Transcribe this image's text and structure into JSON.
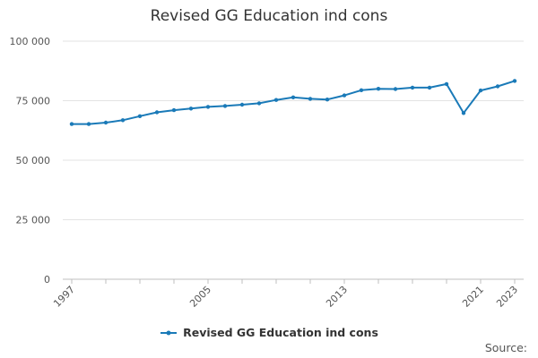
{
  "chart_data": {
    "type": "line",
    "title": "Revised GG Education ind cons",
    "xlabel": "",
    "ylabel": "",
    "x": [
      1997,
      1998,
      1999,
      2000,
      2001,
      2002,
      2003,
      2004,
      2005,
      2006,
      2007,
      2008,
      2009,
      2010,
      2011,
      2012,
      2013,
      2014,
      2015,
      2016,
      2017,
      2018,
      2019,
      2020,
      2021,
      2022,
      2023
    ],
    "x_tick_labels": [
      "1997",
      "2005",
      "2013",
      "2021",
      "2023"
    ],
    "x_ticks": [
      1997,
      2005,
      2013,
      2021,
      2023
    ],
    "xlim": [
      1997,
      2023
    ],
    "y_tick_labels": [
      "0",
      "25 000",
      "50 000",
      "75 000",
      "100 000"
    ],
    "y_ticks": [
      0,
      25000,
      50000,
      75000,
      100000
    ],
    "ylim": [
      0,
      100000
    ],
    "grid": true,
    "legend_position": "bottom",
    "series": [
      {
        "name": "Revised GG Education ind cons",
        "color": "#1a7ab8",
        "values": [
          65200,
          65200,
          65800,
          66800,
          68500,
          70100,
          71000,
          71700,
          72400,
          72800,
          73300,
          73900,
          75300,
          76400,
          75800,
          75500,
          77200,
          79400,
          80000,
          79900,
          80500,
          80500,
          82000,
          69800,
          79300,
          81000,
          83300
        ]
      }
    ]
  },
  "source_label": "Source:"
}
